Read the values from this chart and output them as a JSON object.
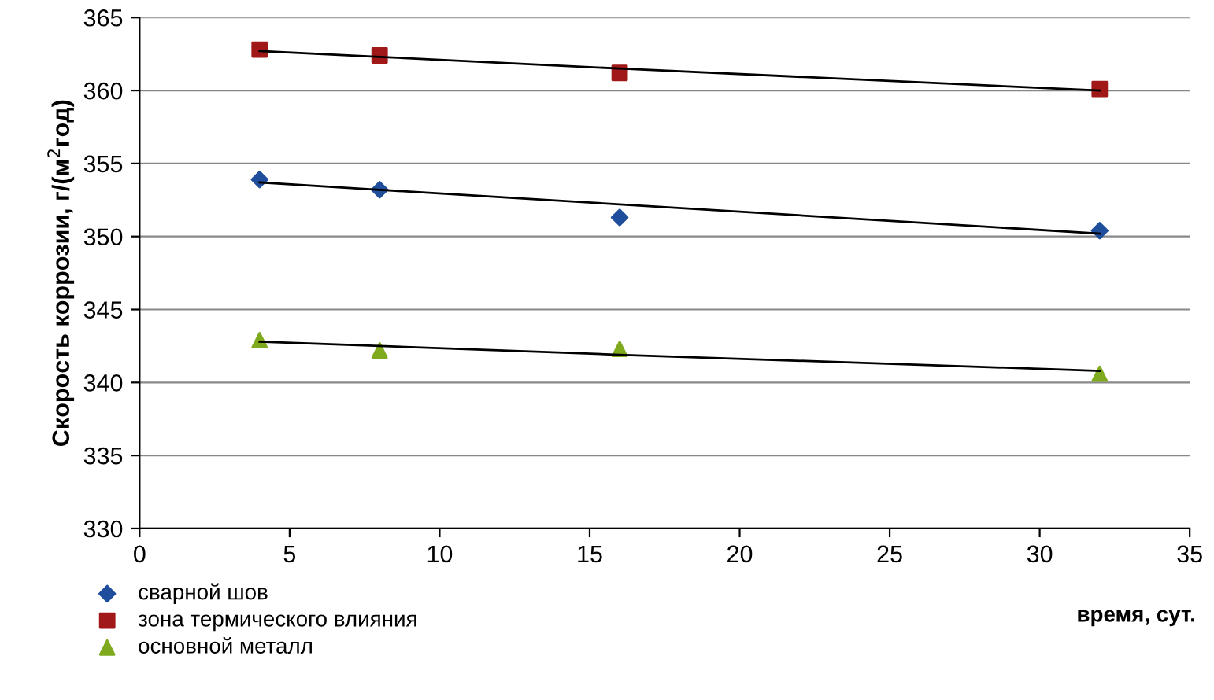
{
  "chart_data": {
    "type": "scatter",
    "xlabel": "время, сут.",
    "ylabel": "Скорость коррозии, г/(м$^{2}$год)",
    "x": [
      4,
      8,
      16,
      32
    ],
    "series": [
      {
        "name": "сварной шов",
        "color": "#1f4e9c",
        "marker": "diamond",
        "values": [
          353.9,
          353.2,
          351.3,
          350.4
        ]
      },
      {
        "name": "зона термического влияния",
        "color": "#a01818",
        "marker": "square",
        "values": [
          362.8,
          362.4,
          361.2,
          360.1
        ]
      },
      {
        "name": "основной металл",
        "color": "#7faa1e",
        "marker": "triangle",
        "values": [
          342.9,
          342.2,
          342.3,
          340.6
        ]
      },
      {
        "type": "line",
        "color": "#000000",
        "values": [
          353.7,
          353.2,
          352.2,
          350.2
        ]
      },
      {
        "type": "line",
        "color": "#000000",
        "values": [
          362.7,
          362.3,
          361.5,
          360.0
        ]
      },
      {
        "type": "line",
        "color": "#000000",
        "values": [
          342.8,
          342.5,
          341.9,
          340.8
        ]
      }
    ],
    "xlim": [
      0,
      35
    ],
    "xticks": [
      0,
      5,
      10,
      15,
      20,
      25,
      30,
      35
    ],
    "ylim": [
      330,
      365
    ],
    "yticks": [
      330,
      335,
      340,
      345,
      350,
      355,
      360,
      365
    ],
    "grid": "y",
    "legend": "bottom left"
  }
}
